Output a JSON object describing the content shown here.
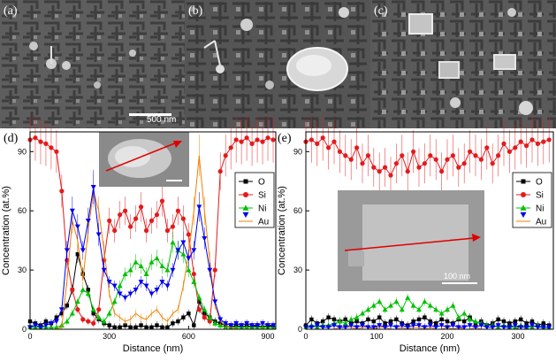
{
  "sem_panels": [
    {
      "label": "(a)",
      "scale_bar_text": "500 nm"
    },
    {
      "label": "(b)"
    },
    {
      "label": "(c)"
    }
  ],
  "chart_data": [
    {
      "type": "line",
      "panel_label": "(d)",
      "xlabel": "Distance (nm)",
      "ylabel": "Concentration (at.%)",
      "xlim": [
        0,
        930
      ],
      "ylim": [
        0,
        100
      ],
      "xticks": [
        0,
        300,
        600,
        900
      ],
      "yticks": [
        0,
        30,
        60,
        90
      ],
      "legend_position": "right",
      "series": [
        {
          "name": "O",
          "color": "#000000",
          "marker": "square",
          "x": [
            0,
            20,
            40,
            60,
            80,
            100,
            120,
            140,
            160,
            180,
            200,
            220,
            240,
            260,
            280,
            300,
            320,
            340,
            360,
            380,
            400,
            420,
            440,
            460,
            480,
            500,
            520,
            540,
            560,
            580,
            600,
            620,
            640,
            660,
            680,
            700,
            720,
            740,
            760,
            780,
            800,
            820,
            840,
            860,
            880,
            900,
            920
          ],
          "y": [
            4,
            3,
            2,
            4,
            3,
            6,
            8,
            12,
            20,
            38,
            28,
            20,
            8,
            5,
            3,
            2,
            1,
            1,
            2,
            1,
            1,
            2,
            1,
            1,
            2,
            1,
            1,
            3,
            4,
            6,
            8,
            2,
            14,
            8,
            6,
            4,
            3,
            2,
            1,
            2,
            1,
            2,
            1,
            2,
            1,
            2,
            1
          ]
        },
        {
          "name": "Si",
          "color": "#e41a1c",
          "marker": "circle",
          "x": [
            0,
            20,
            40,
            60,
            80,
            100,
            120,
            140,
            160,
            180,
            200,
            220,
            240,
            260,
            280,
            300,
            320,
            340,
            360,
            380,
            400,
            420,
            440,
            460,
            480,
            500,
            520,
            540,
            560,
            580,
            600,
            620,
            640,
            660,
            680,
            700,
            720,
            740,
            760,
            780,
            800,
            820,
            840,
            860,
            880,
            900,
            920
          ],
          "y": [
            96,
            97,
            95,
            94,
            92,
            90,
            70,
            35,
            20,
            10,
            5,
            4,
            3,
            10,
            35,
            55,
            50,
            58,
            60,
            52,
            56,
            62,
            50,
            55,
            58,
            65,
            50,
            52,
            60,
            56,
            48,
            28,
            10,
            6,
            4,
            30,
            80,
            88,
            92,
            96,
            95,
            97,
            94,
            96,
            95,
            97,
            96
          ]
        },
        {
          "name": "Ni",
          "color": "#00c000",
          "marker": "triangle-up",
          "x": [
            0,
            20,
            40,
            60,
            80,
            100,
            120,
            140,
            160,
            180,
            200,
            220,
            240,
            260,
            280,
            300,
            320,
            340,
            360,
            380,
            400,
            420,
            440,
            460,
            480,
            500,
            520,
            540,
            560,
            580,
            600,
            620,
            640,
            660,
            680,
            700,
            720,
            740,
            760,
            780,
            800,
            820,
            840,
            860,
            880,
            900,
            920
          ],
          "y": [
            1,
            1,
            1,
            1,
            1,
            1,
            2,
            4,
            8,
            14,
            20,
            18,
            10,
            6,
            4,
            8,
            14,
            22,
            28,
            30,
            34,
            32,
            28,
            34,
            36,
            32,
            30,
            44,
            40,
            38,
            30,
            24,
            16,
            10,
            6,
            3,
            2,
            1,
            1,
            1,
            1,
            1,
            1,
            1,
            1,
            1,
            1
          ]
        },
        {
          "name": "Au",
          "color": "#f08000",
          "marker": "line",
          "x": [
            0,
            20,
            40,
            60,
            80,
            100,
            120,
            140,
            160,
            180,
            200,
            220,
            240,
            260,
            280,
            300,
            320,
            340,
            360,
            380,
            400,
            420,
            440,
            460,
            480,
            500,
            520,
            540,
            560,
            580,
            600,
            620,
            640,
            660,
            680,
            700,
            720,
            740,
            760,
            780,
            800,
            820,
            840,
            860,
            880,
            900,
            920
          ],
          "y": [
            0,
            0,
            0,
            0,
            0,
            0,
            1,
            25,
            55,
            45,
            25,
            50,
            70,
            60,
            40,
            18,
            8,
            6,
            4,
            5,
            8,
            6,
            5,
            8,
            10,
            6,
            4,
            8,
            10,
            22,
            38,
            60,
            88,
            60,
            35,
            12,
            4,
            2,
            1,
            0,
            0,
            0,
            0,
            0,
            0,
            0,
            0
          ]
        },
        {
          "name": "",
          "color": "#0000ee",
          "marker": "triangle-down",
          "x": [
            0,
            20,
            40,
            60,
            80,
            100,
            120,
            140,
            160,
            180,
            200,
            220,
            240,
            260,
            280,
            300,
            320,
            340,
            360,
            380,
            400,
            420,
            440,
            460,
            480,
            500,
            520,
            540,
            560,
            580,
            600,
            620,
            640,
            660,
            680,
            700,
            720,
            740,
            760,
            780,
            800,
            820,
            840,
            860,
            880,
            900,
            920
          ],
          "y": [
            1,
            2,
            1,
            2,
            3,
            4,
            10,
            40,
            60,
            52,
            40,
            55,
            72,
            48,
            30,
            24,
            22,
            18,
            16,
            18,
            20,
            24,
            22,
            18,
            20,
            24,
            22,
            30,
            40,
            44,
            36,
            40,
            62,
            46,
            30,
            14,
            5,
            3,
            2,
            3,
            2,
            3,
            2,
            2,
            3,
            2,
            2
          ]
        }
      ],
      "inset_scale_bar_text": ""
    },
    {
      "type": "line",
      "panel_label": "(e)",
      "xlabel": "Distance (nm)",
      "ylabel": "Concentration (at.%)",
      "xlim": [
        0,
        350
      ],
      "ylim": [
        0,
        100
      ],
      "xticks": [
        0,
        100,
        200,
        300
      ],
      "yticks": [
        0,
        30,
        60,
        90
      ],
      "legend_position": "right",
      "series": [
        {
          "name": "O",
          "color": "#000000",
          "marker": "square",
          "x": [
            0,
            8,
            16,
            24,
            32,
            40,
            48,
            56,
            64,
            72,
            80,
            88,
            96,
            104,
            112,
            120,
            128,
            136,
            144,
            152,
            160,
            168,
            176,
            184,
            192,
            200,
            208,
            216,
            224,
            232,
            240,
            248,
            256,
            264,
            272,
            280,
            288,
            296,
            304,
            312,
            320,
            328,
            336,
            344
          ],
          "y": [
            2,
            5,
            3,
            4,
            6,
            5,
            4,
            5,
            3,
            4,
            3,
            5,
            4,
            6,
            3,
            4,
            5,
            3,
            2,
            4,
            5,
            6,
            4,
            3,
            5,
            4,
            3,
            5,
            4,
            6,
            3,
            4,
            2,
            3,
            5,
            4,
            3,
            4,
            5,
            3,
            4,
            2,
            3,
            2
          ]
        },
        {
          "name": "Si",
          "color": "#e41a1c",
          "marker": "circle",
          "x": [
            0,
            8,
            16,
            24,
            32,
            40,
            48,
            56,
            64,
            72,
            80,
            88,
            96,
            104,
            112,
            120,
            128,
            136,
            144,
            152,
            160,
            168,
            176,
            184,
            192,
            200,
            208,
            216,
            224,
            232,
            240,
            248,
            256,
            264,
            272,
            280,
            288,
            296,
            304,
            312,
            320,
            328,
            336,
            344
          ],
          "y": [
            95,
            96,
            94,
            97,
            92,
            95,
            90,
            88,
            86,
            92,
            84,
            88,
            82,
            80,
            82,
            78,
            84,
            88,
            80,
            90,
            82,
            84,
            88,
            86,
            80,
            86,
            88,
            82,
            84,
            90,
            88,
            86,
            92,
            84,
            88,
            94,
            90,
            92,
            95,
            93,
            96,
            94,
            95,
            96
          ]
        },
        {
          "name": "Ni",
          "color": "#00c000",
          "marker": "triangle-up",
          "x": [
            0,
            8,
            16,
            24,
            32,
            40,
            48,
            56,
            64,
            72,
            80,
            88,
            96,
            104,
            112,
            120,
            128,
            136,
            144,
            152,
            160,
            168,
            176,
            184,
            192,
            200,
            208,
            216,
            224,
            232,
            240,
            248,
            256,
            264,
            272,
            280,
            288,
            296,
            304,
            312,
            320,
            328,
            336,
            344
          ],
          "y": [
            1,
            2,
            1,
            2,
            2,
            3,
            4,
            3,
            5,
            6,
            8,
            10,
            12,
            14,
            10,
            12,
            14,
            10,
            16,
            12,
            10,
            14,
            12,
            10,
            8,
            10,
            12,
            6,
            8,
            5,
            4,
            3,
            2,
            2,
            1,
            2,
            1,
            1,
            2,
            1,
            1,
            2,
            1,
            1
          ]
        },
        {
          "name": "Au",
          "color": "#f08000",
          "marker": "line",
          "x": [
            0,
            8,
            16,
            24,
            32,
            40,
            48,
            56,
            64,
            72,
            80,
            88,
            96,
            104,
            112,
            120,
            128,
            136,
            144,
            152,
            160,
            168,
            176,
            184,
            192,
            200,
            208,
            216,
            224,
            232,
            240,
            248,
            256,
            264,
            272,
            280,
            288,
            296,
            304,
            312,
            320,
            328,
            336,
            344
          ],
          "y": [
            0,
            0,
            0,
            0,
            0,
            0,
            1,
            1,
            1,
            0,
            1,
            1,
            0,
            1,
            1,
            0,
            0,
            1,
            0,
            1,
            1,
            0,
            1,
            0,
            0,
            1,
            0,
            1,
            0,
            0,
            1,
            0,
            0,
            0,
            0,
            0,
            0,
            0,
            0,
            0,
            0,
            0,
            0,
            0
          ]
        },
        {
          "name": "",
          "color": "#0000ee",
          "marker": "triangle-down",
          "x": [
            0,
            8,
            16,
            24,
            32,
            40,
            48,
            56,
            64,
            72,
            80,
            88,
            96,
            104,
            112,
            120,
            128,
            136,
            144,
            152,
            160,
            168,
            176,
            184,
            192,
            200,
            208,
            216,
            224,
            232,
            240,
            248,
            256,
            264,
            272,
            280,
            288,
            296,
            304,
            312,
            320,
            328,
            336,
            344
          ],
          "y": [
            1,
            1,
            2,
            1,
            1,
            2,
            1,
            1,
            2,
            1,
            2,
            1,
            1,
            2,
            1,
            2,
            1,
            2,
            1,
            2,
            2,
            1,
            2,
            1,
            2,
            1,
            2,
            1,
            1,
            2,
            1,
            2,
            1,
            1,
            2,
            1,
            1,
            2,
            1,
            1,
            2,
            1,
            1,
            1
          ]
        }
      ],
      "inset_scale_bar_text": "100 nm"
    }
  ]
}
